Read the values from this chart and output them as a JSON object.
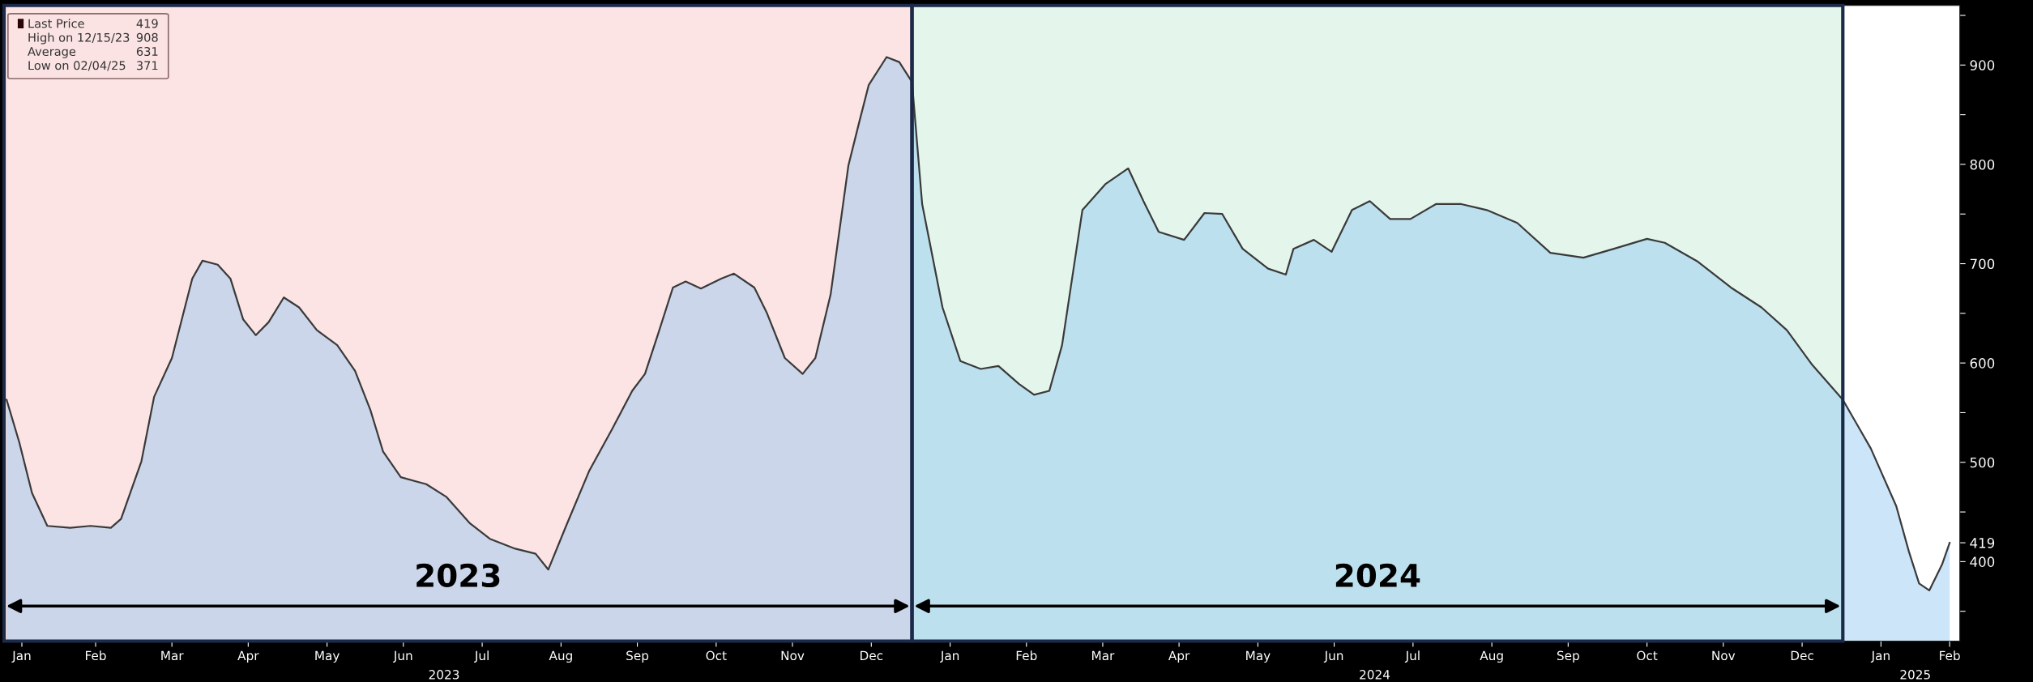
{
  "chart_data": {
    "type": "area",
    "legend": "top left",
    "grid": false,
    "x": [
      "2023-01-10",
      "2023-01-15",
      "2023-01-20",
      "2023-01-26",
      "2023-02-04",
      "2023-02-12",
      "2023-02-20",
      "2023-02-24",
      "2023-03-04",
      "2023-03-09",
      "2023-03-16",
      "2023-03-24",
      "2023-03-28",
      "2023-04-03",
      "2023-04-08",
      "2023-04-13",
      "2023-04-18",
      "2023-04-23",
      "2023-04-29",
      "2023-05-05",
      "2023-05-12",
      "2023-05-20",
      "2023-05-27",
      "2023-06-02",
      "2023-06-07",
      "2023-06-14",
      "2023-06-24",
      "2023-07-02",
      "2023-07-11",
      "2023-07-19",
      "2023-07-29",
      "2023-08-06",
      "2023-08-11",
      "2023-08-18",
      "2023-08-27",
      "2023-09-05",
      "2023-09-13",
      "2023-09-18",
      "2023-09-23",
      "2023-09-29",
      "2023-10-04",
      "2023-10-10",
      "2023-10-18",
      "2023-10-23",
      "2023-10-31",
      "2023-11-05",
      "2023-11-12",
      "2023-11-19",
      "2023-11-24",
      "2023-11-30",
      "2023-12-07",
      "2023-12-11",
      "2023-12-15",
      "2023-12-22",
      "2023-12-27",
      "2024-01-01",
      "2024-01-05",
      "2024-01-13",
      "2024-01-20",
      "2024-01-28",
      "2024-02-04",
      "2024-02-12",
      "2024-02-18",
      "2024-02-24",
      "2024-02-29",
      "2024-03-08",
      "2024-03-17",
      "2024-03-26",
      "2024-04-01",
      "2024-04-07",
      "2024-04-17",
      "2024-04-25",
      "2024-05-02",
      "2024-05-10",
      "2024-05-20",
      "2024-05-27",
      "2024-05-30",
      "2024-06-07",
      "2024-06-14",
      "2024-06-22",
      "2024-06-29",
      "2024-07-07",
      "2024-07-15",
      "2024-07-25",
      "2024-08-04",
      "2024-08-14",
      "2024-08-26",
      "2024-09-08",
      "2024-09-21",
      "2024-10-03",
      "2024-10-16",
      "2024-10-23",
      "2024-11-05",
      "2024-11-18",
      "2024-11-30",
      "2024-12-10",
      "2024-12-20",
      "2025-01-01",
      "2025-01-12",
      "2025-01-22",
      "2025-01-27",
      "2025-01-31",
      "2025-02-04",
      "2025-02-09",
      "2025-02-12"
    ],
    "series": [
      {
        "name": "Last Price",
        "color": "#8ec5f2",
        "values": [
          563,
          520,
          469,
          436,
          434,
          436,
          434,
          443,
          501,
          566,
          605,
          685,
          703,
          699,
          685,
          644,
          628,
          641,
          666,
          656,
          633,
          618,
          592,
          553,
          511,
          485,
          478,
          465,
          439,
          423,
          413,
          408,
          392,
          436,
          491,
          533,
          572,
          589,
          628,
          676,
          682,
          675,
          685,
          690,
          676,
          650,
          605,
          589,
          605,
          669,
          799,
          840,
          880,
          908,
          903,
          883,
          760,
          656,
          602,
          594,
          597,
          579,
          568,
          572,
          618,
          754,
          780,
          796,
          763,
          732,
          724,
          751,
          750,
          715,
          695,
          689,
          715,
          724,
          712,
          754,
          763,
          745,
          745,
          760,
          760,
          754,
          741,
          711,
          706,
          715,
          725,
          721,
          702,
          676,
          656,
          633,
          598,
          563,
          514,
          456,
          410,
          378,
          371,
          397,
          419
        ]
      }
    ],
    "xlim": [
      "2023-01-09",
      "2025-02-16"
    ],
    "xticks": [
      {
        "value": "2023-01-16",
        "label": "Jan"
      },
      {
        "value": "2023-02-14",
        "label": "Feb"
      },
      {
        "value": "2023-03-16",
        "label": "Mar"
      },
      {
        "value": "2023-04-15",
        "label": "Apr"
      },
      {
        "value": "2023-05-16",
        "label": "May"
      },
      {
        "value": "2023-06-15",
        "label": "Jun"
      },
      {
        "value": "2023-07-16",
        "label": "Jul"
      },
      {
        "value": "2023-08-16",
        "label": "Aug"
      },
      {
        "value": "2023-09-15",
        "label": "Sep"
      },
      {
        "value": "2023-10-16",
        "label": "Oct"
      },
      {
        "value": "2023-11-15",
        "label": "Nov"
      },
      {
        "value": "2023-12-16",
        "label": "Dec"
      },
      {
        "value": "2024-01-16",
        "label": "Jan"
      },
      {
        "value": "2024-02-15",
        "label": "Feb"
      },
      {
        "value": "2024-03-16",
        "label": "Mar"
      },
      {
        "value": "2024-04-15",
        "label": "Apr"
      },
      {
        "value": "2024-05-16",
        "label": "May"
      },
      {
        "value": "2024-06-15",
        "label": "Jun"
      },
      {
        "value": "2024-07-16",
        "label": "Jul"
      },
      {
        "value": "2024-08-16",
        "label": "Aug"
      },
      {
        "value": "2024-09-15",
        "label": "Sep"
      },
      {
        "value": "2024-10-16",
        "label": "Oct"
      },
      {
        "value": "2024-11-15",
        "label": "Nov"
      },
      {
        "value": "2024-12-16",
        "label": "Dec"
      },
      {
        "value": "2025-01-16",
        "label": "Jan"
      },
      {
        "value": "2025-02-12",
        "label": "Feb"
      }
    ],
    "ylim": [
      320,
      960
    ],
    "yticks": [
      {
        "value": 350,
        "label": null
      },
      400,
      {
        "value": 419,
        "label": "419"
      },
      {
        "value": 450,
        "label": null
      },
      500,
      {
        "value": 550,
        "label": null
      },
      600,
      {
        "value": 650,
        "label": null
      },
      700,
      {
        "value": 750,
        "label": null
      },
      800,
      {
        "value": 850,
        "label": null
      },
      900,
      {
        "value": 950,
        "label": null
      }
    ],
    "bands": [
      {
        "axis": "x",
        "from": "2023-01-09",
        "to": "2024-01-01",
        "label": "2023",
        "color": "#fde4e4"
      },
      {
        "axis": "x",
        "from": "2024-01-01",
        "to": "2025-01-01",
        "label": "2024",
        "color": "#e4f6ec"
      }
    ],
    "annotations": [
      "419",
      "High on 12/15/23",
      "908",
      "Average",
      "631",
      "Low on 02/04/25",
      "371",
      "2023",
      "2024",
      "2025"
    ]
  }
}
